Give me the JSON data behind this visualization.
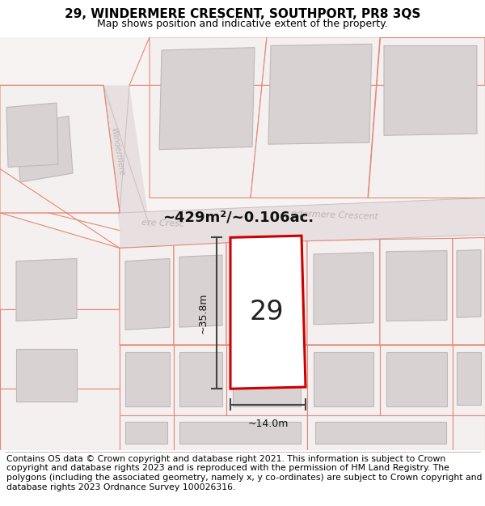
{
  "title": "29, WINDERMERE CRESCENT, SOUTHPORT, PR8 3QS",
  "subtitle": "Map shows position and indicative extent of the property.",
  "footer": "Contains OS data © Crown copyright and database right 2021. This information is subject to Crown copyright and database rights 2023 and is reproduced with the permission of HM Land Registry. The polygons (including the associated geometry, namely x, y co-ordinates) are subject to Crown copyright and database rights 2023 Ordnance Survey 100026316.",
  "area_label": "~429m²/~0.106ac.",
  "width_label": "~14.0m",
  "height_label": "~35.8m",
  "plot_number": "29",
  "map_bg": "#f7f2f2",
  "plot_red": "#cc0000",
  "parcel_line": "#e08878",
  "building_fill": "#d8d2d2",
  "building_outline": "#beb8b8",
  "dim_color": "#444444",
  "road_fill": "#e8e0e0",
  "road_label_color": "#b0a8a8",
  "title_fontsize": 11,
  "subtitle_fontsize": 9,
  "footer_fontsize": 7.8
}
